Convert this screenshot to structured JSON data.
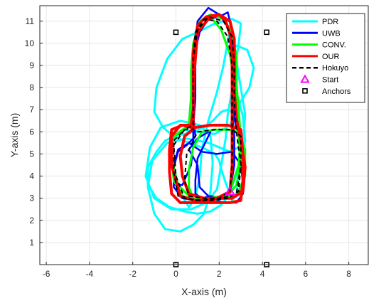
{
  "chart_data": {
    "type": "line",
    "title": "",
    "xlabel": "X-axis (m)",
    "ylabel": "Y-axis (m)",
    "xlim": [
      -6.3,
      8.9
    ],
    "ylim": [
      0,
      11.7
    ],
    "xticks": [
      -6,
      -4,
      -2,
      0,
      2,
      4,
      6,
      8
    ],
    "yticks": [
      1,
      2,
      3,
      4,
      5,
      6,
      7,
      8,
      9,
      10,
      11
    ],
    "grid": true,
    "legend_position": "top-right",
    "legend": [
      {
        "name": "PDR",
        "color": "#00ffff",
        "style": "line"
      },
      {
        "name": "UWB",
        "color": "#0000ff",
        "style": "line"
      },
      {
        "name": "CONV.",
        "color": "#00ff00",
        "style": "line"
      },
      {
        "name": "OUR",
        "color": "#ff0000",
        "style": "line"
      },
      {
        "name": "Hokuyo",
        "color": "#000000",
        "style": "dashed"
      },
      {
        "name": "Start",
        "color": "#ff00ff",
        "style": "triangle-marker"
      },
      {
        "name": "Anchors",
        "color": "#000000",
        "style": "square-marker"
      }
    ],
    "series": [
      {
        "name": "PDR",
        "color": "#00ffff",
        "width": 3,
        "x": [
          2.5,
          2.9,
          3.2,
          3.1,
          2.8,
          2.6,
          2.6,
          2.8,
          3.3,
          3.6,
          3.4,
          2.9,
          2.5,
          1.8,
          1.0,
          0.3,
          -0.2,
          -0.2,
          0.1,
          0.6,
          0.9,
          1.1,
          1.2,
          1.5,
          1.9,
          2.2,
          2.4,
          2.5,
          2.6,
          2.8,
          3.0,
          3.2,
          3.1,
          2.5,
          1.5,
          0.5,
          -0.4,
          -1.1,
          -1.3,
          -1.0,
          -0.5,
          0.2,
          0.8,
          1.3,
          1.6,
          1.7,
          1.6,
          1.1,
          0.2,
          -0.7,
          -1.2,
          -1.4,
          -1.0,
          -0.2,
          0.7,
          1.4,
          1.9,
          2.1,
          2.3,
          2.4,
          2.6,
          2.7,
          2.9,
          3.0,
          2.6,
          1.8,
          1.0,
          0.3,
          -0.4,
          -0.9,
          -1.0,
          -0.6,
          -0.1,
          0.6,
          1.2,
          1.6,
          1.8,
          2.0,
          2.1,
          2.3,
          2.5,
          2.6,
          2.8,
          2.9,
          3.0,
          3.0,
          2.9,
          2.7,
          2.4,
          2.1,
          1.7,
          1.3,
          0.8,
          0.4,
          -0.1,
          -0.5,
          -0.9,
          -1.3,
          -1.3,
          -0.9,
          -0.3,
          0.4,
          1.0,
          1.6,
          2.1,
          2.5
        ],
        "y": [
          3.3,
          4.3,
          5.6,
          6.7,
          7.8,
          8.8,
          9.6,
          9.9,
          9.7,
          8.9,
          8.0,
          7.2,
          6.3,
          5.9,
          6.0,
          6.1,
          5.6,
          4.5,
          3.4,
          2.6,
          3.0,
          4.0,
          5.2,
          6.5,
          7.8,
          9.0,
          10.1,
          10.6,
          10.2,
          9.2,
          8.0,
          6.8,
          5.4,
          5.1,
          5.5,
          5.7,
          5.5,
          4.7,
          3.5,
          2.3,
          1.6,
          1.5,
          1.8,
          2.3,
          3.3,
          4.6,
          5.8,
          6.3,
          6.5,
          6.2,
          5.3,
          4.0,
          3.0,
          2.5,
          2.5,
          2.8,
          3.4,
          4.5,
          5.7,
          6.8,
          7.9,
          8.9,
          9.9,
          10.9,
          11.1,
          10.9,
          10.5,
          10.2,
          9.3,
          8.0,
          6.9,
          6.2,
          5.8,
          5.5,
          5.3,
          5.1,
          5.0,
          4.7,
          4.3,
          3.7,
          3.2,
          2.9,
          3.2,
          3.9,
          4.8,
          5.8,
          6.5,
          6.8,
          7.0,
          6.9,
          6.5,
          6.2,
          6.0,
          5.9,
          5.8,
          5.6,
          5.1,
          4.4,
          3.6,
          3.0,
          2.6,
          2.4,
          2.3,
          2.4,
          2.7,
          3.2
        ]
      },
      {
        "name": "UWB",
        "color": "#0000ff",
        "width": 2.5,
        "x": [
          2.5,
          2.7,
          2.7,
          2.6,
          2.6,
          2.7,
          2.5,
          2.0,
          1.5,
          1.0,
          0.9,
          0.9,
          0.9,
          0.8,
          0.8,
          0.7,
          0.3,
          -0.1,
          -0.1,
          0.1,
          0.6,
          1.2,
          1.9,
          2.6,
          3.0,
          3.1,
          3.1,
          2.8,
          2.2,
          1.6,
          1.1,
          1.0,
          0.6,
          1.0,
          1.5,
          1.6,
          1.4,
          1.0,
          0.9,
          0.9,
          1.2,
          1.6,
          2.1,
          2.6,
          3.1,
          3.2,
          3.0,
          2.7,
          2.7,
          2.6,
          2.6,
          2.5,
          2.4,
          2.0,
          1.5,
          1.1,
          0.8,
          0.8,
          0.8,
          0.9,
          0.5,
          0.1,
          -0.1,
          -0.1,
          0.3,
          0.9,
          1.6,
          2.3,
          2.5
        ],
        "y": [
          3.3,
          4.5,
          5.8,
          7.0,
          8.2,
          9.4,
          10.6,
          11.3,
          11.6,
          11.0,
          10.0,
          8.8,
          7.5,
          6.2,
          5.4,
          4.5,
          3.6,
          3.6,
          4.5,
          5.2,
          5.5,
          5.1,
          5.0,
          5.1,
          4.5,
          3.7,
          3.2,
          2.8,
          2.8,
          3.0,
          3.5,
          4.5,
          5.2,
          5.7,
          6.0,
          6.0,
          5.6,
          4.8,
          3.8,
          3.2,
          3.0,
          3.1,
          3.0,
          3.0,
          3.4,
          4.4,
          5.5,
          6.6,
          7.8,
          9.0,
          10.2,
          11.0,
          11.4,
          11.2,
          11.1,
          10.5,
          9.3,
          8.0,
          6.8,
          5.8,
          5.4,
          5.1,
          4.4,
          3.5,
          3.0,
          2.9,
          3.0,
          3.1,
          3.3
        ]
      },
      {
        "name": "CONV.",
        "color": "#00ff00",
        "width": 3,
        "x": [
          2.5,
          2.9,
          3.0,
          2.9,
          2.8,
          2.8,
          2.6,
          2.2,
          1.6,
          1.1,
          0.8,
          0.7,
          0.7,
          0.6,
          0.3,
          -0.1,
          -0.2,
          -0.1,
          0.3,
          0.9,
          1.6,
          2.3,
          2.8,
          3.2,
          3.2,
          2.9,
          2.4,
          1.8,
          1.2,
          0.8,
          0.6,
          0.6,
          0.8,
          1.2,
          1.8,
          2.4,
          2.8,
          3.0,
          2.9,
          2.8,
          2.7,
          2.5,
          2.1,
          1.6,
          1.1,
          0.9,
          0.8,
          0.8,
          0.7,
          0.3,
          -0.1,
          -0.2,
          0.1,
          0.7,
          1.5,
          2.2,
          2.5
        ],
        "y": [
          3.3,
          4.5,
          5.8,
          7.0,
          8.2,
          9.4,
          10.5,
          11.1,
          11.3,
          11.0,
          10.0,
          8.8,
          7.6,
          6.3,
          6.0,
          5.8,
          4.8,
          3.8,
          3.1,
          2.9,
          2.9,
          3.0,
          3.1,
          4.0,
          5.2,
          6.0,
          6.1,
          6.1,
          6.0,
          5.3,
          4.3,
          3.5,
          3.0,
          3.0,
          3.0,
          3.1,
          3.6,
          4.6,
          5.8,
          7.0,
          8.2,
          9.5,
          10.6,
          11.2,
          11.0,
          10.0,
          8.8,
          7.5,
          6.3,
          6.1,
          5.8,
          4.8,
          3.6,
          3.0,
          3.0,
          3.1,
          3.3
        ]
      },
      {
        "name": "OUR",
        "color": "#ff0000",
        "width": 4,
        "x": [
          2.5,
          2.6,
          2.6,
          2.6,
          2.6,
          2.6,
          2.5,
          2.3,
          2.0,
          1.5,
          1.0,
          0.9,
          0.8,
          0.8,
          0.8,
          0.8,
          0.7,
          0.3,
          -0.2,
          -0.3,
          -0.3,
          -0.2,
          0.2,
          0.9,
          1.7,
          2.5,
          3.0,
          3.1,
          3.1,
          3.0,
          2.4,
          1.6,
          0.9,
          0.4,
          0.2,
          0.3,
          0.6,
          1.3,
          2.0,
          2.6,
          3.1,
          3.2,
          3.0,
          2.8,
          2.7,
          2.7,
          2.7,
          2.5,
          2.0,
          1.4,
          1.0,
          0.8,
          0.8,
          0.8,
          0.7,
          0.2,
          -0.2,
          -0.2,
          0.2,
          0.9,
          1.7,
          2.5
        ],
        "y": [
          3.3,
          4.5,
          5.7,
          6.9,
          8.1,
          9.3,
          10.4,
          11.0,
          11.3,
          11.1,
          10.5,
          9.3,
          8.0,
          6.8,
          6.3,
          6.2,
          6.2,
          6.3,
          6.1,
          5.2,
          4.2,
          3.2,
          2.8,
          2.8,
          2.8,
          2.8,
          2.9,
          3.8,
          5.0,
          6.1,
          6.3,
          6.3,
          6.2,
          5.8,
          4.9,
          4.0,
          3.2,
          3.0,
          3.0,
          3.0,
          3.3,
          4.4,
          5.6,
          6.6,
          7.8,
          9.0,
          10.2,
          11.0,
          11.3,
          11.2,
          10.8,
          9.6,
          8.3,
          7.0,
          6.3,
          6.3,
          5.8,
          4.5,
          3.1,
          2.9,
          2.9,
          3.3
        ]
      },
      {
        "name": "Hokuyo",
        "color": "#000000",
        "width": 2,
        "dashed": true,
        "x": [
          2.5,
          2.6,
          2.6,
          2.6,
          2.6,
          2.4,
          1.9,
          1.3,
          0.9,
          0.8,
          0.8,
          0.8,
          0.8,
          0.4,
          -0.1,
          -0.1,
          0.1,
          0.8,
          1.6,
          2.4,
          2.9,
          3.0,
          3.0,
          2.6,
          1.8,
          1.0,
          0.5,
          0.4,
          0.6,
          1.3,
          2.1,
          2.8,
          3.0,
          2.8,
          2.7,
          2.7,
          2.6,
          2.2,
          1.5,
          1.0,
          0.8,
          0.8,
          0.8,
          0.4,
          -0.1,
          0.0,
          0.4,
          1.2,
          2.0,
          2.5
        ],
        "y": [
          3.3,
          4.6,
          6.0,
          7.5,
          9.0,
          10.3,
          11.0,
          11.1,
          10.5,
          9.2,
          7.8,
          6.6,
          6.1,
          6.1,
          5.6,
          4.2,
          3.1,
          2.9,
          2.9,
          3.0,
          3.3,
          4.5,
          5.8,
          6.1,
          6.1,
          6.0,
          5.0,
          3.8,
          3.1,
          3.0,
          3.0,
          3.2,
          4.5,
          6.0,
          7.5,
          9.0,
          10.3,
          11.0,
          11.2,
          10.6,
          9.3,
          7.8,
          6.3,
          6.1,
          5.4,
          4.0,
          3.0,
          2.9,
          3.0,
          3.3
        ]
      }
    ],
    "start": {
      "x": 2.5,
      "y": 3.3,
      "color": "#ff00ff"
    },
    "anchors": {
      "x": [
        0,
        4.2,
        0,
        4.2
      ],
      "y": [
        10.5,
        10.5,
        0,
        0
      ],
      "color": "#000000"
    }
  }
}
